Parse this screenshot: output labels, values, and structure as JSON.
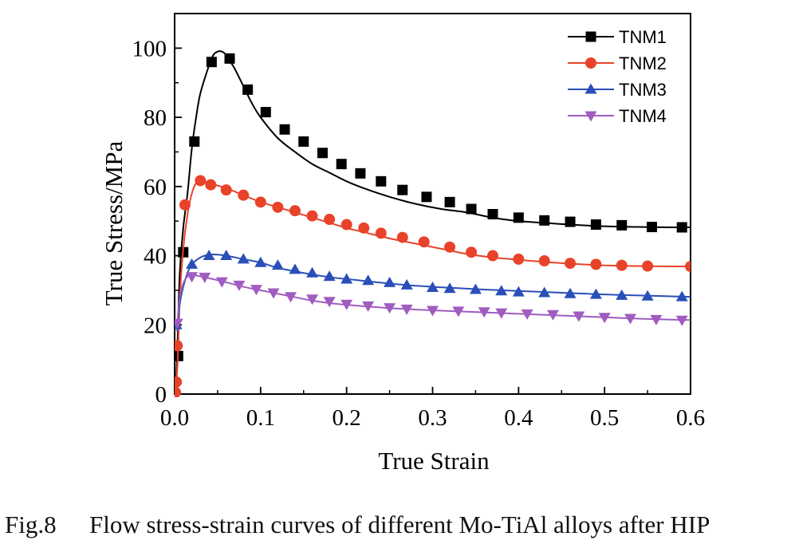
{
  "colors": {
    "TNM1": "#000000",
    "TNM2": "#e8432a",
    "TNM3": "#2a4fb8",
    "TNM4": "#a05cc0",
    "axis": "#000000"
  },
  "caption": {
    "fig_label": "Fig.8",
    "text": "Flow stress-strain curves of different Mo-TiAl alloys after HIP"
  },
  "chart_data": {
    "type": "line",
    "title": "",
    "xlabel": "True Strain",
    "ylabel": "True Stress/MPa",
    "xlim": [
      0,
      0.6
    ],
    "ylim": [
      0,
      110
    ],
    "xticks": [
      0.0,
      0.1,
      0.2,
      0.3,
      0.4,
      0.5,
      0.6
    ],
    "xtick_labels": [
      "0.0",
      "0.1",
      "0.2",
      "0.3",
      "0.4",
      "0.5",
      "0.6"
    ],
    "yticks": [
      0,
      20,
      40,
      60,
      80,
      100
    ],
    "ytick_labels": [
      "0",
      "20",
      "40",
      "60",
      "80",
      "100"
    ],
    "legend_position": "top-right",
    "grid": false,
    "series": [
      {
        "name": "TNM1",
        "marker": "square",
        "x": [
          0.002,
          0.004,
          0.006,
          0.01,
          0.015,
          0.02,
          0.025,
          0.03,
          0.04,
          0.045,
          0.05,
          0.055,
          0.06,
          0.065,
          0.07,
          0.08,
          0.09,
          0.1,
          0.12,
          0.14,
          0.16,
          0.18,
          0.2,
          0.22,
          0.25,
          0.28,
          0.31,
          0.34,
          0.37,
          0.4,
          0.43,
          0.46,
          0.5,
          0.54,
          0.58,
          0.6
        ],
        "y": [
          5,
          20,
          35,
          48,
          58,
          71,
          80,
          87,
          95,
          98,
          99,
          99,
          98,
          96,
          94,
          89,
          84,
          80,
          74,
          70,
          66.5,
          64,
          61.5,
          59.5,
          57,
          55,
          53.5,
          52.5,
          51,
          50,
          49.5,
          49,
          48.5,
          48.3,
          48.2,
          48.2
        ],
        "marker_x": [
          0.004,
          0.01,
          0.023,
          0.043,
          0.064,
          0.085,
          0.106,
          0.128,
          0.15,
          0.172,
          0.194,
          0.216,
          0.24,
          0.265,
          0.293,
          0.32,
          0.345,
          0.37,
          0.4,
          0.43,
          0.46,
          0.49,
          0.52,
          0.555,
          0.59
        ],
        "marker_y": [
          11,
          41,
          73,
          96,
          97,
          88,
          81.5,
          76.5,
          73,
          69.7,
          66.5,
          63.8,
          61.5,
          59,
          57,
          55.5,
          53.5,
          52,
          51,
          50.2,
          49.8,
          49,
          48.8,
          48.3,
          48.2
        ]
      },
      {
        "name": "TNM2",
        "marker": "circle",
        "x": [
          0.002,
          0.004,
          0.006,
          0.01,
          0.015,
          0.02,
          0.025,
          0.03,
          0.035,
          0.04,
          0.06,
          0.08,
          0.1,
          0.12,
          0.14,
          0.16,
          0.18,
          0.2,
          0.22,
          0.25,
          0.28,
          0.31,
          0.34,
          0.37,
          0.4,
          0.43,
          0.46,
          0.5,
          0.54,
          0.58,
          0.6
        ],
        "y": [
          3,
          12,
          28,
          42,
          52,
          58,
          61,
          61.7,
          61.5,
          61,
          59.5,
          57.5,
          55.5,
          54,
          52.5,
          51,
          49.5,
          48,
          46.8,
          45,
          43.5,
          42,
          40.5,
          39.5,
          38.8,
          38.2,
          37.7,
          37.2,
          37,
          36.9,
          36.9
        ],
        "marker_x": [
          0.001,
          0.002,
          0.003,
          0.012,
          0.03,
          0.042,
          0.06,
          0.08,
          0.1,
          0.12,
          0.14,
          0.16,
          0.18,
          0.2,
          0.22,
          0.24,
          0.265,
          0.29,
          0.32,
          0.345,
          0.37,
          0.4,
          0.43,
          0.46,
          0.49,
          0.52,
          0.55,
          0.6
        ],
        "marker_y": [
          0.5,
          3.5,
          14,
          54.7,
          61.7,
          60.5,
          59,
          57.5,
          55.5,
          54,
          53,
          51.5,
          50.5,
          49,
          48,
          46.5,
          45.3,
          44,
          42.5,
          41,
          40,
          39,
          38.5,
          37.8,
          37.5,
          37.2,
          37,
          36.9
        ]
      },
      {
        "name": "TNM3",
        "marker": "triangle-up",
        "x": [
          0.003,
          0.006,
          0.01,
          0.015,
          0.02,
          0.03,
          0.04,
          0.05,
          0.06,
          0.08,
          0.1,
          0.12,
          0.15,
          0.18,
          0.21,
          0.24,
          0.27,
          0.3,
          0.33,
          0.36,
          0.39,
          0.42,
          0.45,
          0.48,
          0.51,
          0.54,
          0.57,
          0.6
        ],
        "y": [
          18,
          26,
          31,
          35,
          37.5,
          39.5,
          40.3,
          40.3,
          40,
          39,
          38,
          36.5,
          35,
          33.8,
          33,
          32.2,
          31.5,
          31,
          30.6,
          30.2,
          29.9,
          29.6,
          29.3,
          29,
          28.7,
          28.5,
          28.3,
          28.1
        ],
        "marker_x": [
          0.002,
          0.02,
          0.04,
          0.06,
          0.08,
          0.1,
          0.12,
          0.14,
          0.16,
          0.18,
          0.2,
          0.225,
          0.25,
          0.27,
          0.3,
          0.32,
          0.35,
          0.38,
          0.4,
          0.43,
          0.46,
          0.49,
          0.52,
          0.55,
          0.59
        ],
        "marker_y": [
          20,
          37.5,
          40,
          40,
          39,
          38,
          37.2,
          36,
          35,
          34,
          33.2,
          32.8,
          32.2,
          31.5,
          30.8,
          30.5,
          30.2,
          29.8,
          29.5,
          29.3,
          29,
          28.8,
          28.5,
          28.3,
          28.1
        ]
      },
      {
        "name": "TNM4",
        "marker": "triangle-down",
        "x": [
          0.003,
          0.006,
          0.01,
          0.015,
          0.02,
          0.03,
          0.04,
          0.06,
          0.08,
          0.1,
          0.12,
          0.14,
          0.16,
          0.18,
          0.2,
          0.23,
          0.26,
          0.3,
          0.34,
          0.38,
          0.42,
          0.46,
          0.5,
          0.54,
          0.58,
          0.6
        ],
        "y": [
          20,
          28,
          32,
          34,
          34.5,
          34,
          33.5,
          32.3,
          31,
          30,
          29,
          28,
          27,
          26.3,
          25.8,
          25.2,
          24.7,
          24.2,
          23.8,
          23.4,
          23,
          22.6,
          22.2,
          21.8,
          21.5,
          21.4
        ],
        "marker_x": [
          0.003,
          0.02,
          0.035,
          0.055,
          0.075,
          0.095,
          0.115,
          0.135,
          0.16,
          0.18,
          0.2,
          0.225,
          0.25,
          0.27,
          0.3,
          0.33,
          0.36,
          0.38,
          0.41,
          0.44,
          0.47,
          0.5,
          0.53,
          0.56,
          0.59
        ],
        "marker_y": [
          20.5,
          34,
          33.8,
          32.5,
          31.5,
          30.3,
          29.3,
          28.2,
          27.5,
          26.8,
          26,
          25.5,
          25,
          24.6,
          24.2,
          24,
          23.8,
          23.5,
          23.2,
          23,
          22.6,
          22.2,
          21.9,
          21.6,
          21.4
        ]
      }
    ]
  }
}
